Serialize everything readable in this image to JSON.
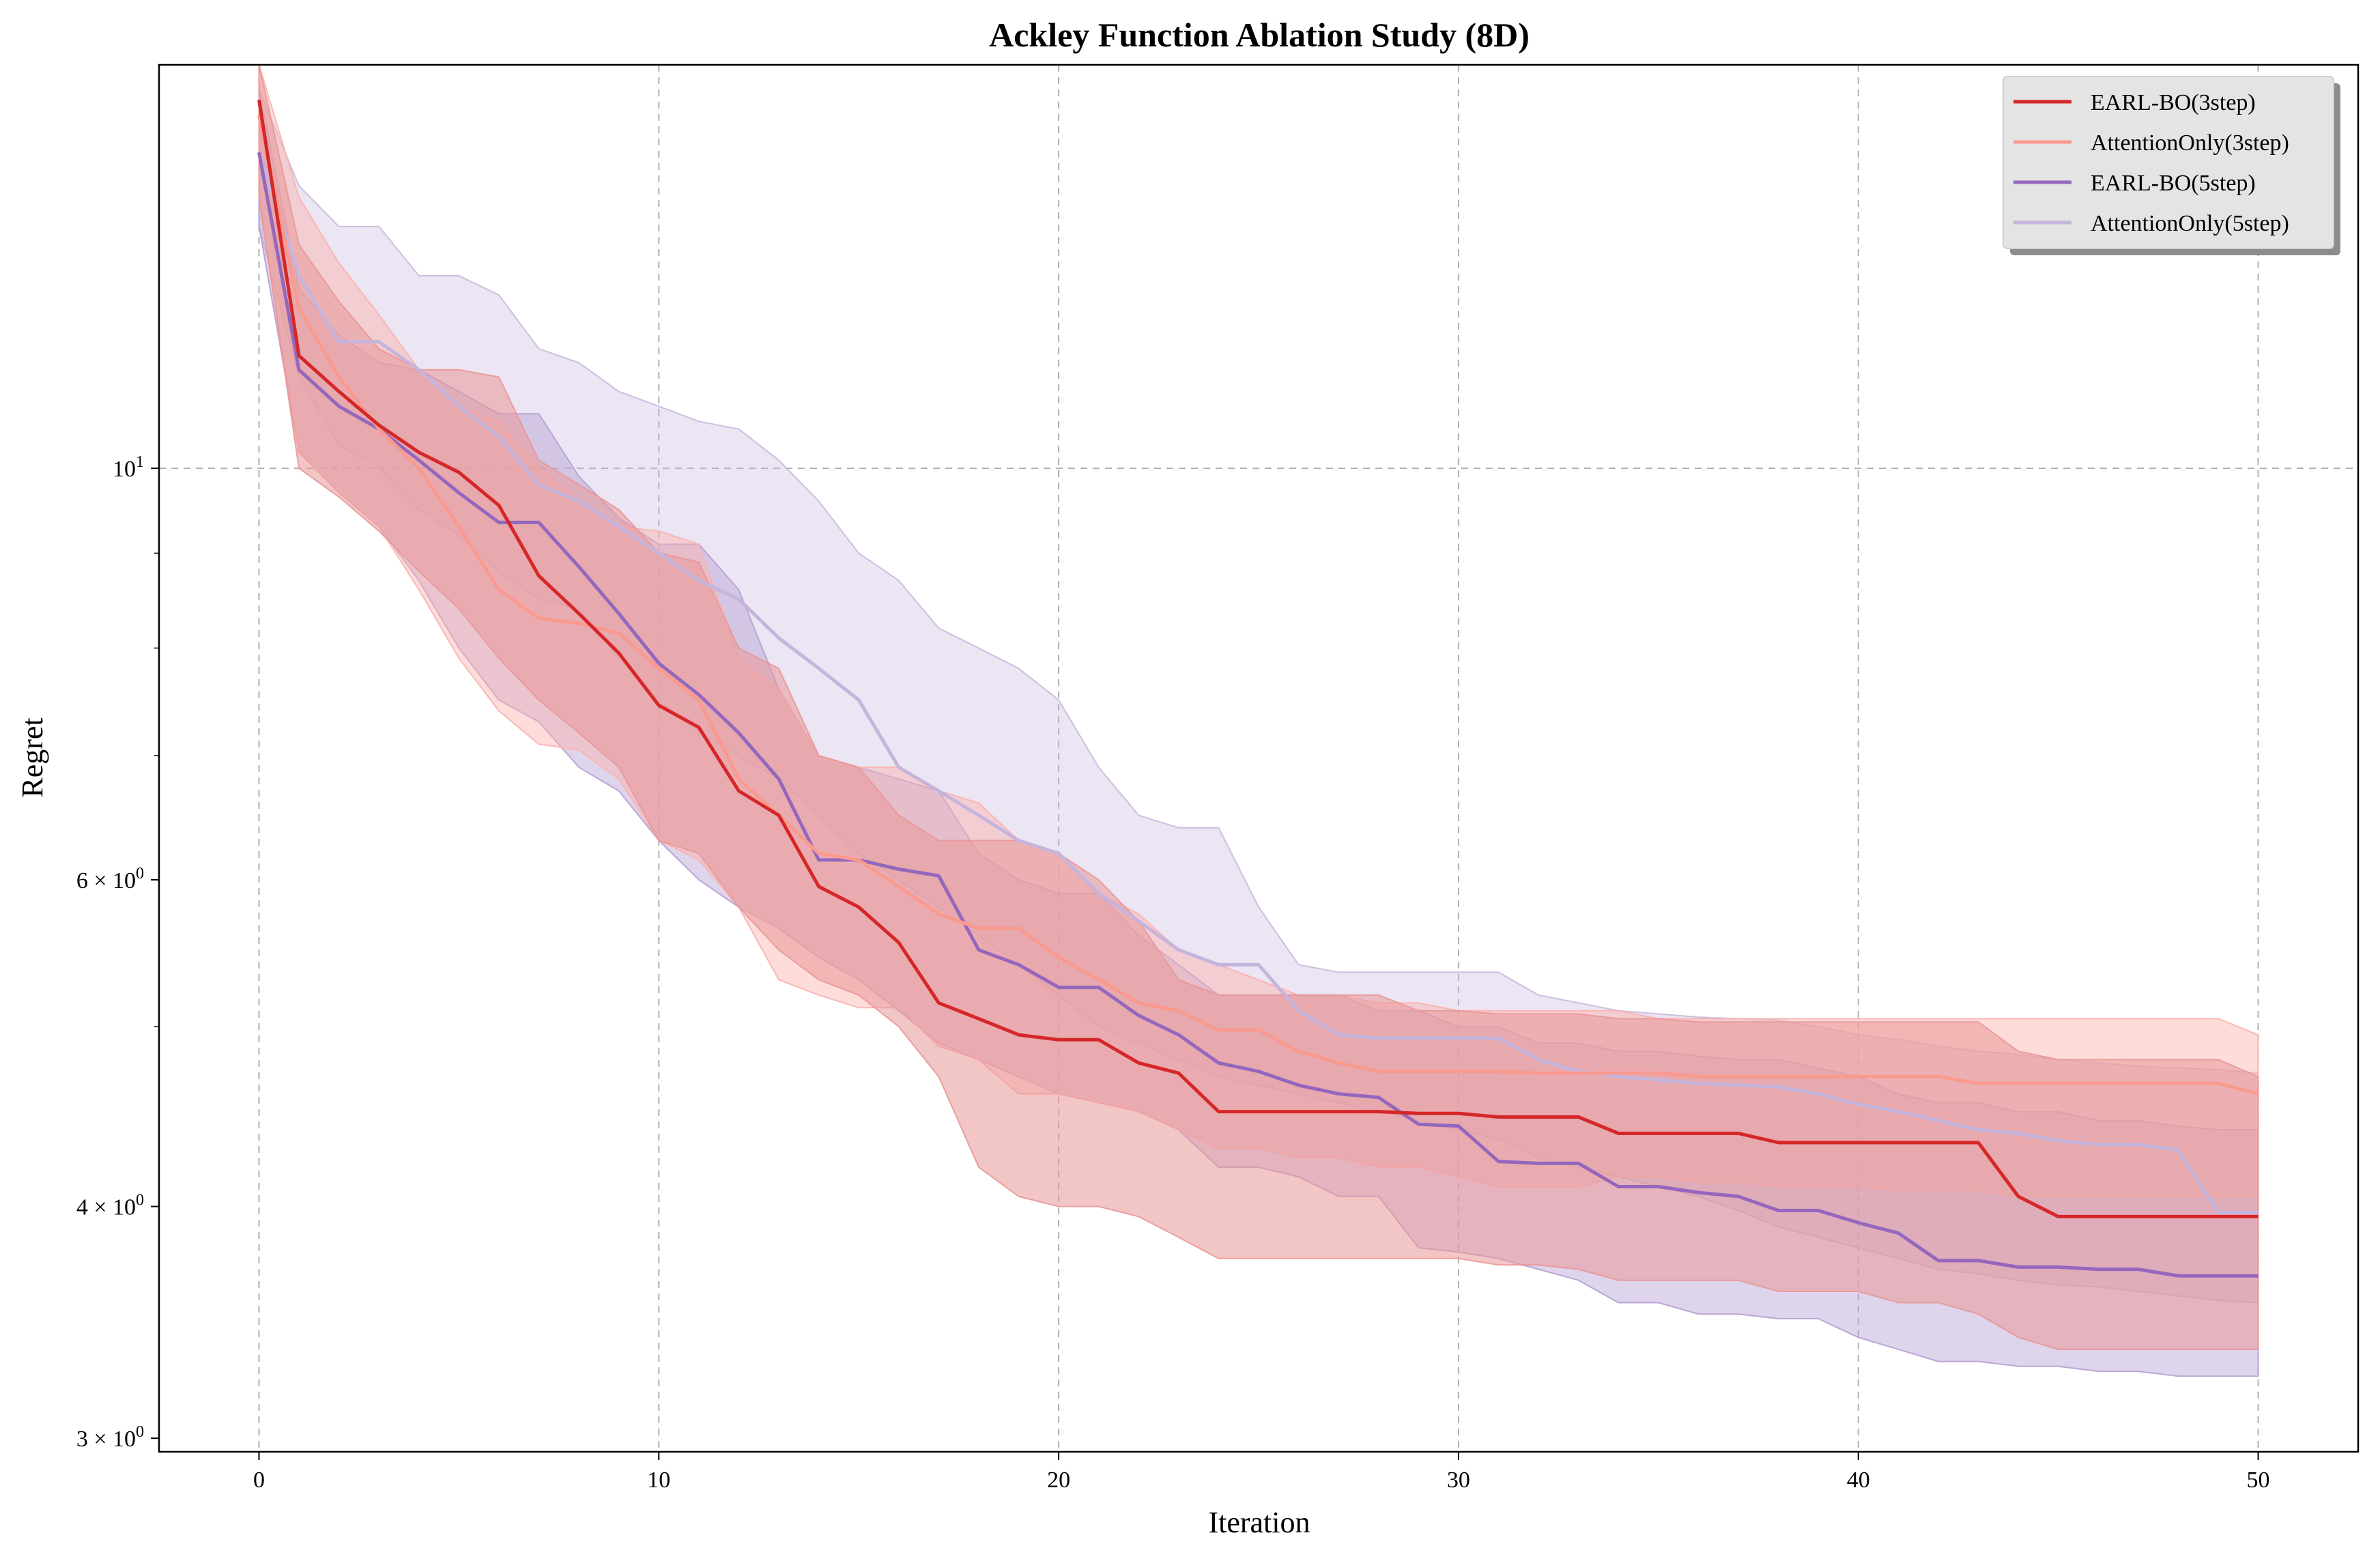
{
  "chart_data": {
    "type": "line",
    "title": "Ackley Function Ablation Study (8D)",
    "xlabel": "Iteration",
    "ylabel": "Regret",
    "xlim": [
      -2.5,
      52.5
    ],
    "ylim": [
      2.95,
      16.5
    ],
    "yscale": "log",
    "grid": true,
    "legend_position": "top-right",
    "xticks": [
      0,
      10,
      20,
      30,
      40,
      50
    ],
    "yticks": [
      {
        "value": 10,
        "base": "10",
        "exp": "1",
        "coef": ""
      },
      {
        "value": 6,
        "base": "10",
        "exp": "0",
        "coef": "6 × "
      },
      {
        "value": 4,
        "base": "10",
        "exp": "0",
        "coef": "4 × "
      },
      {
        "value": 3,
        "base": "10",
        "exp": "0",
        "coef": "3 × "
      }
    ],
    "minor_yticks": [
      5,
      7,
      8,
      9
    ],
    "series": [
      {
        "name": "AttentionOnly(5step)",
        "color": "#c5b4dc",
        "band_color": "#c9b8dd",
        "band_opacity": 0.36,
        "mean": [
          14.8,
          12.7,
          11.7,
          11.7,
          11.3,
          10.8,
          10.4,
          9.8,
          9.6,
          9.3,
          9.0,
          8.7,
          8.5,
          8.1,
          7.8,
          7.5,
          6.9,
          6.7,
          6.5,
          6.3,
          6.2,
          5.9,
          5.7,
          5.5,
          5.4,
          5.4,
          5.1,
          4.95,
          4.93,
          4.93,
          4.93,
          4.93,
          4.8,
          4.73,
          4.7,
          4.68,
          4.66,
          4.65,
          4.64,
          4.6,
          4.54,
          4.5,
          4.45,
          4.4,
          4.38,
          4.34,
          4.32,
          4.32,
          4.29,
          3.97,
          3.97
        ],
        "lower": [
          13.5,
          11.2,
          10.3,
          10.0,
          9.5,
          9.2,
          8.8,
          8.5,
          8.4,
          7.9,
          7.5,
          7.2,
          7.0,
          6.8,
          6.5,
          6.2,
          6.0,
          5.8,
          5.6,
          5.4,
          5.2,
          5.0,
          4.9,
          4.8,
          4.7,
          4.65,
          4.6,
          4.55,
          4.5,
          4.45,
          4.4,
          4.35,
          4.25,
          4.2,
          4.15,
          4.1,
          4.05,
          3.98,
          3.9,
          3.85,
          3.8,
          3.75,
          3.7,
          3.68,
          3.65,
          3.63,
          3.62,
          3.6,
          3.58,
          3.56,
          3.55
        ],
        "upper": [
          16.0,
          14.2,
          13.5,
          13.5,
          12.7,
          12.7,
          12.4,
          11.6,
          11.4,
          11.0,
          10.8,
          10.6,
          10.5,
          10.1,
          9.6,
          9.0,
          8.7,
          8.2,
          8.0,
          7.8,
          7.5,
          6.9,
          6.5,
          6.4,
          6.4,
          5.8,
          5.4,
          5.35,
          5.35,
          5.35,
          5.35,
          5.35,
          5.2,
          5.15,
          5.1,
          5.08,
          5.06,
          5.05,
          5.04,
          5.0,
          4.95,
          4.92,
          4.88,
          4.85,
          4.83,
          4.8,
          4.78,
          4.76,
          4.75,
          4.74,
          4.72
        ]
      },
      {
        "name": "EARL-BO(5step)",
        "color": "#9467bd",
        "band_color": "#b69fd2",
        "band_opacity": 0.45,
        "mean": [
          14.8,
          11.3,
          10.8,
          10.5,
          10.1,
          9.7,
          9.35,
          9.35,
          8.85,
          8.35,
          7.85,
          7.55,
          7.2,
          6.8,
          6.15,
          6.15,
          6.08,
          6.03,
          5.5,
          5.4,
          5.25,
          5.25,
          5.07,
          4.95,
          4.78,
          4.73,
          4.65,
          4.6,
          4.58,
          4.43,
          4.42,
          4.23,
          4.22,
          4.22,
          4.1,
          4.1,
          4.07,
          4.05,
          3.98,
          3.98,
          3.92,
          3.87,
          3.74,
          3.74,
          3.71,
          3.71,
          3.7,
          3.7,
          3.67,
          3.67,
          3.67
        ],
        "lower": [
          13.5,
          10.2,
          9.7,
          9.3,
          8.7,
          8.0,
          7.5,
          7.3,
          6.9,
          6.7,
          6.3,
          6.0,
          5.8,
          5.65,
          5.45,
          5.3,
          5.1,
          4.9,
          4.8,
          4.7,
          4.6,
          4.55,
          4.5,
          4.4,
          4.2,
          4.2,
          4.15,
          4.05,
          4.05,
          3.8,
          3.78,
          3.75,
          3.7,
          3.65,
          3.55,
          3.55,
          3.5,
          3.5,
          3.48,
          3.48,
          3.4,
          3.35,
          3.3,
          3.3,
          3.28,
          3.28,
          3.26,
          3.26,
          3.24,
          3.24,
          3.24
        ],
        "upper": [
          16.0,
          12.5,
          11.8,
          11.4,
          11.3,
          11.0,
          10.7,
          10.7,
          9.9,
          9.4,
          9.1,
          9.1,
          8.6,
          7.6,
          7.0,
          6.9,
          6.8,
          6.7,
          6.2,
          6.0,
          5.9,
          5.9,
          5.6,
          5.4,
          5.2,
          5.2,
          5.2,
          5.2,
          5.1,
          5.1,
          5.0,
          5.0,
          4.9,
          4.9,
          4.85,
          4.85,
          4.82,
          4.8,
          4.8,
          4.75,
          4.7,
          4.6,
          4.55,
          4.55,
          4.5,
          4.5,
          4.45,
          4.45,
          4.42,
          4.4,
          4.4
        ]
      },
      {
        "name": "AttentionOnly(3step)",
        "color": "#fa9a8e",
        "band_color": "#fbb1ae",
        "band_opacity": 0.45,
        "mean": [
          15.5,
          12.2,
          11.2,
          10.5,
          10.0,
          9.3,
          8.6,
          8.3,
          8.25,
          8.15,
          7.8,
          7.5,
          6.8,
          6.5,
          6.2,
          6.15,
          5.95,
          5.75,
          5.65,
          5.65,
          5.45,
          5.3,
          5.15,
          5.1,
          4.98,
          4.98,
          4.85,
          4.78,
          4.73,
          4.73,
          4.73,
          4.73,
          4.72,
          4.72,
          4.72,
          4.72,
          4.7,
          4.7,
          4.7,
          4.7,
          4.7,
          4.7,
          4.7,
          4.66,
          4.66,
          4.66,
          4.66,
          4.66,
          4.66,
          4.66,
          4.6
        ],
        "lower": [
          14.0,
          10.2,
          9.7,
          9.3,
          8.6,
          7.9,
          7.4,
          7.1,
          7.05,
          6.8,
          6.3,
          6.15,
          5.8,
          5.3,
          5.2,
          5.12,
          5.12,
          4.88,
          4.8,
          4.6,
          4.6,
          4.55,
          4.5,
          4.4,
          4.3,
          4.3,
          4.25,
          4.25,
          4.2,
          4.2,
          4.15,
          4.1,
          4.1,
          4.1,
          4.15,
          4.15,
          4.12,
          4.12,
          4.1,
          4.1,
          4.1,
          4.08,
          4.08,
          4.08,
          4.05,
          4.05,
          4.05,
          4.05,
          4.05,
          4.05,
          4.05
        ],
        "upper": [
          16.5,
          14.0,
          12.9,
          12.1,
          11.3,
          10.8,
          10.6,
          10.0,
          9.6,
          9.3,
          9.25,
          9.1,
          7.9,
          7.6,
          7.0,
          6.9,
          6.9,
          6.7,
          6.6,
          6.3,
          6.2,
          5.9,
          5.75,
          5.5,
          5.4,
          5.3,
          5.2,
          5.2,
          5.15,
          5.15,
          5.1,
          5.1,
          5.1,
          5.1,
          5.1,
          5.05,
          5.05,
          5.05,
          5.05,
          5.05,
          5.05,
          5.05,
          5.05,
          5.05,
          5.05,
          5.05,
          5.05,
          5.05,
          5.05,
          5.05,
          4.95
        ]
      },
      {
        "name": "EARL-BO(3step)",
        "color": "#d62728",
        "band_color": "#e99797",
        "band_opacity": 0.55,
        "mean": [
          15.8,
          11.5,
          11.0,
          10.55,
          10.2,
          9.95,
          9.55,
          8.75,
          8.35,
          7.95,
          7.45,
          7.25,
          6.7,
          6.5,
          5.95,
          5.8,
          5.55,
          5.15,
          5.05,
          4.95,
          4.92,
          4.92,
          4.78,
          4.72,
          4.5,
          4.5,
          4.5,
          4.5,
          4.5,
          4.49,
          4.49,
          4.47,
          4.47,
          4.47,
          4.38,
          4.38,
          4.38,
          4.38,
          4.33,
          4.33,
          4.33,
          4.33,
          4.33,
          4.33,
          4.05,
          3.95,
          3.95,
          3.95,
          3.95,
          3.95,
          3.95
        ],
        "lower": [
          14.0,
          10.0,
          9.65,
          9.25,
          8.8,
          8.4,
          7.9,
          7.5,
          7.2,
          6.9,
          6.3,
          6.2,
          5.8,
          5.5,
          5.3,
          5.2,
          5.0,
          4.7,
          4.2,
          4.05,
          4.0,
          4.0,
          3.95,
          3.85,
          3.75,
          3.75,
          3.75,
          3.75,
          3.75,
          3.75,
          3.75,
          3.72,
          3.72,
          3.7,
          3.65,
          3.65,
          3.65,
          3.65,
          3.6,
          3.6,
          3.6,
          3.55,
          3.55,
          3.5,
          3.4,
          3.35,
          3.35,
          3.35,
          3.35,
          3.35,
          3.35
        ],
        "upper": [
          16.5,
          13.2,
          12.3,
          11.6,
          11.3,
          11.3,
          11.2,
          10.1,
          9.8,
          9.5,
          9.0,
          8.9,
          8.0,
          7.8,
          7.0,
          6.9,
          6.5,
          6.3,
          6.3,
          6.3,
          6.2,
          6.0,
          5.7,
          5.3,
          5.2,
          5.2,
          5.2,
          5.2,
          5.2,
          5.1,
          5.1,
          5.08,
          5.08,
          5.08,
          5.05,
          5.05,
          5.03,
          5.03,
          5.03,
          5.03,
          5.03,
          5.03,
          5.03,
          5.03,
          4.85,
          4.8,
          4.8,
          4.8,
          4.8,
          4.8,
          4.7
        ]
      }
    ],
    "legend_order": [
      "EARL-BO(3step)",
      "AttentionOnly(3step)",
      "EARL-BO(5step)",
      "AttentionOnly(5step)"
    ]
  }
}
